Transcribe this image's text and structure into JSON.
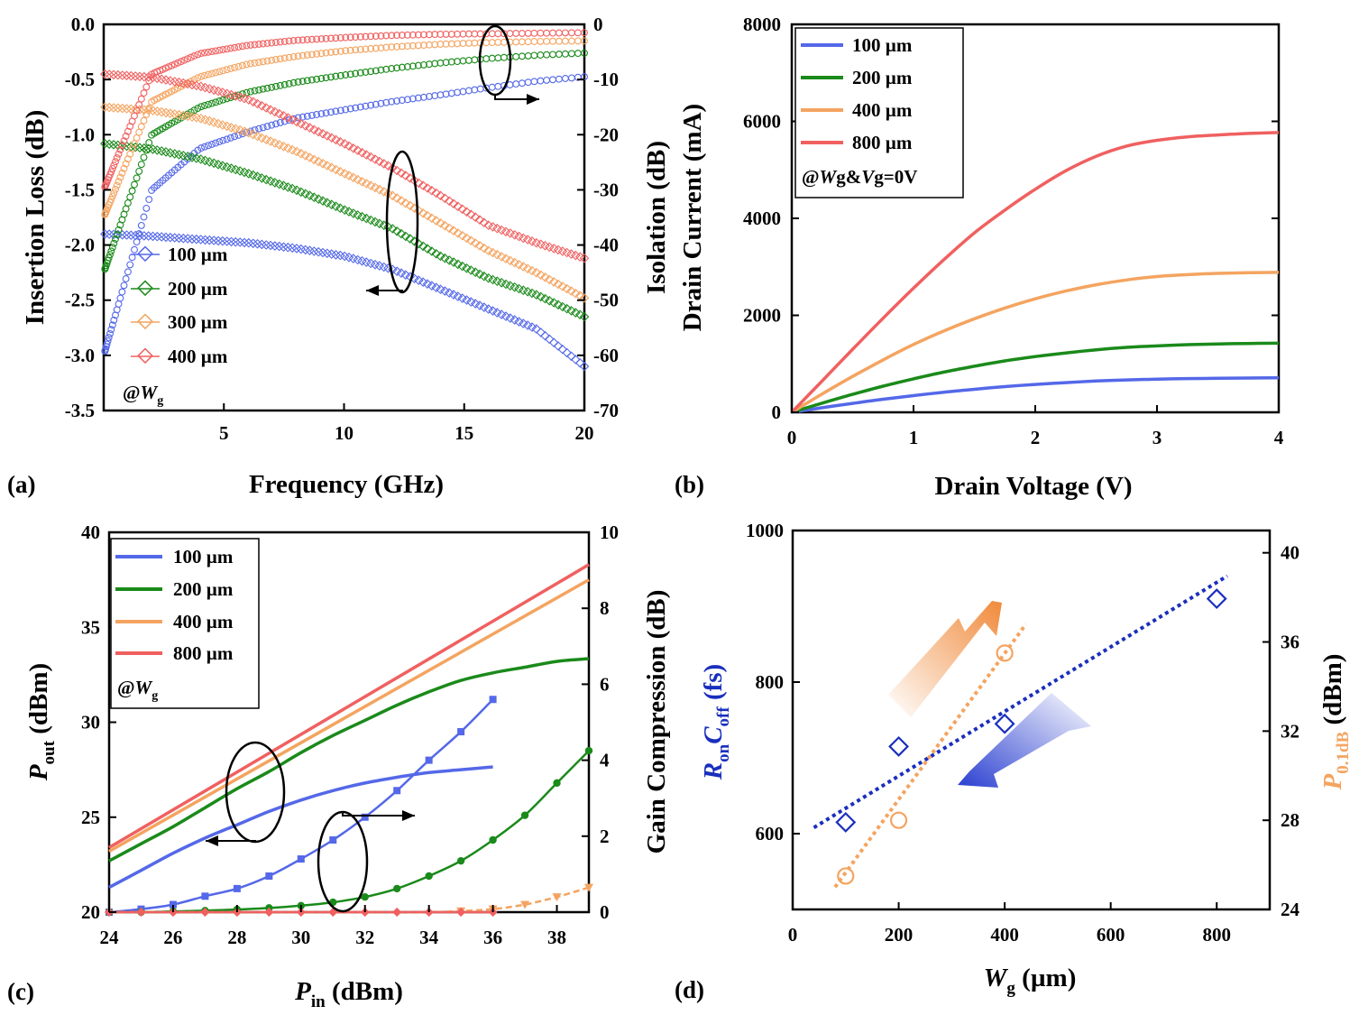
{
  "figure": {
    "panel_labels": [
      "(a)",
      "(b)",
      "(c)",
      "(d)"
    ]
  },
  "chart_data": [
    {
      "id": "a",
      "type": "scatter",
      "xlabel": "Frequency (GHz)",
      "ylabel_left": "Insertion Loss (dB)",
      "ylabel_right": "Isolation (dB)",
      "xlim": [
        0,
        20
      ],
      "ylim_left": [
        -3.5,
        0.0
      ],
      "ylim_right": [
        -70,
        0
      ],
      "xticks": [
        "5",
        "10",
        "15",
        "20"
      ],
      "yticks_left": [
        "0.0",
        "-0.5",
        "-1.0",
        "-1.5",
        "-2.0",
        "-2.5",
        "-3.0",
        "-3.5"
      ],
      "yticks_right": [
        "0",
        "-10",
        "-20",
        "-30",
        "-40",
        "-50",
        "-60",
        "-70"
      ],
      "annotation": {
        "prefix": "@",
        "var": "W",
        "sub": "g"
      },
      "legend": [
        "100 µm",
        "200 µm",
        "300 µm",
        "400 µm"
      ],
      "colors": [
        "#5468e8",
        "#1a8a1a",
        "#f4a460",
        "#f06060"
      ],
      "x": [
        0,
        2,
        4,
        6,
        8,
        10,
        12,
        14,
        16,
        18,
        20
      ],
      "series": [
        {
          "name": "100 µm",
          "insertion_loss": [
            -1.9,
            -1.92,
            -1.95,
            -1.98,
            -2.03,
            -2.1,
            -2.22,
            -2.4,
            -2.58,
            -2.76,
            -3.1
          ],
          "isolation": [
            -60,
            -30,
            -22.5,
            -19.5,
            -17,
            -15.5,
            -14,
            -12.8,
            -11.5,
            -10.3,
            -9.5
          ]
        },
        {
          "name": "200 µm",
          "insertion_loss": [
            -1.08,
            -1.13,
            -1.22,
            -1.35,
            -1.5,
            -1.68,
            -1.85,
            -2.1,
            -2.3,
            -2.45,
            -2.65
          ],
          "isolation": [
            -45,
            -20,
            -15,
            -12.3,
            -10.5,
            -9.2,
            -8,
            -7,
            -6.2,
            -5.6,
            -5.2
          ]
        },
        {
          "name": "300 µm",
          "insertion_loss": [
            -0.75,
            -0.78,
            -0.85,
            -0.98,
            -1.15,
            -1.35,
            -1.55,
            -1.8,
            -2.05,
            -2.25,
            -2.48
          ],
          "isolation": [
            -35,
            -14,
            -9.5,
            -7.2,
            -5.8,
            -4.8,
            -4.1,
            -3.6,
            -3.3,
            -3.1,
            -3.0
          ]
        },
        {
          "name": "400 µm",
          "insertion_loss": [
            -0.45,
            -0.48,
            -0.56,
            -0.68,
            -0.88,
            -1.08,
            -1.3,
            -1.55,
            -1.82,
            -1.98,
            -2.12
          ],
          "isolation": [
            -30,
            -9,
            -5.3,
            -3.8,
            -2.9,
            -2.4,
            -2.0,
            -1.8,
            -1.7,
            -1.6,
            -1.5
          ]
        }
      ]
    },
    {
      "id": "b",
      "type": "line",
      "xlabel": "Drain Voltage (V)",
      "ylabel": "Drain Current (mA)",
      "xlim": [
        0,
        4
      ],
      "ylim": [
        0,
        8000
      ],
      "xticks": [
        "0",
        "1",
        "2",
        "3",
        "4"
      ],
      "yticks": [
        "0",
        "2000",
        "4000",
        "6000",
        "8000"
      ],
      "legend": [
        "100 µm",
        "200 µm",
        "400 µm",
        "800 µm"
      ],
      "annotation": {
        "text1": "@",
        "var1": "W",
        "sub1": "g",
        "mid": "&",
        "var2": "V",
        "sub2": "g",
        "tail": "=0V"
      },
      "colors": [
        "#5468e8",
        "#1a8a1a",
        "#f4a460",
        "#f06060"
      ],
      "x": [
        0,
        0.25,
        0.5,
        0.75,
        1.0,
        1.25,
        1.5,
        1.75,
        2.0,
        2.25,
        2.5,
        2.75,
        3.0,
        3.25,
        3.5,
        3.75,
        4.0
      ],
      "series": [
        {
          "name": "100 µm",
          "values": [
            0,
            95,
            185,
            270,
            345,
            415,
            475,
            530,
            575,
            612,
            645,
            668,
            683,
            695,
            702,
            707,
            710
          ]
        },
        {
          "name": "200 µm",
          "values": [
            0,
            190,
            370,
            540,
            690,
            830,
            950,
            1060,
            1150,
            1225,
            1290,
            1340,
            1370,
            1395,
            1410,
            1420,
            1425
          ]
        },
        {
          "name": "400 µm",
          "values": [
            0,
            380,
            740,
            1080,
            1400,
            1680,
            1930,
            2150,
            2340,
            2500,
            2630,
            2730,
            2800,
            2840,
            2865,
            2878,
            2885
          ]
        },
        {
          "name": "800 µm",
          "values": [
            0,
            650,
            1300,
            1940,
            2560,
            3150,
            3700,
            4170,
            4600,
            4980,
            5280,
            5490,
            5610,
            5680,
            5720,
            5750,
            5770
          ]
        }
      ]
    },
    {
      "id": "c",
      "type": "line",
      "xlabel": {
        "var": "P",
        "sub": "in",
        "unit": " (dBm)"
      },
      "ylabel_left": {
        "var": "P",
        "sub": "out",
        "unit": " (dBm)"
      },
      "ylabel_right": "Gain Compression (dB)",
      "xlim": [
        24,
        39
      ],
      "ylim_left": [
        20,
        40
      ],
      "ylim_right": [
        0,
        10
      ],
      "xticks": [
        "24",
        "26",
        "28",
        "30",
        "32",
        "34",
        "36",
        "38"
      ],
      "yticks_left": [
        "20",
        "25",
        "30",
        "35",
        "40"
      ],
      "yticks_right": [
        "0",
        "2",
        "4",
        "6",
        "8",
        "10"
      ],
      "legend": [
        "100 µm",
        "200 µm",
        "400 µm",
        "800 µm"
      ],
      "annotation": {
        "prefix": "@",
        "var": "W",
        "sub": "g"
      },
      "colors": [
        "#5468e8",
        "#1a8a1a",
        "#f4a460",
        "#f06060"
      ],
      "pout": [
        {
          "name": "100 µm",
          "x": [
            24,
            25,
            26,
            27,
            28,
            29,
            30,
            31,
            32,
            33,
            34,
            35,
            36
          ],
          "values": [
            21.3,
            22.2,
            23.1,
            23.9,
            24.6,
            25.3,
            25.9,
            26.4,
            26.8,
            27.1,
            27.35,
            27.5,
            27.65
          ]
        },
        {
          "name": "200 µm",
          "x": [
            24,
            25,
            26,
            27,
            28,
            29,
            30,
            31,
            32,
            33,
            34,
            35,
            36,
            37,
            38,
            39
          ],
          "values": [
            22.7,
            23.6,
            24.5,
            25.5,
            26.5,
            27.4,
            28.4,
            29.3,
            30.1,
            30.9,
            31.6,
            32.2,
            32.6,
            32.9,
            33.2,
            33.35
          ]
        },
        {
          "name": "400 µm",
          "x": [
            24,
            39
          ],
          "values": [
            23.2,
            37.5
          ]
        },
        {
          "name": "800 µm",
          "x": [
            24,
            39
          ],
          "values": [
            23.4,
            38.3
          ]
        }
      ],
      "gain_compression": [
        {
          "name": "100 µm",
          "x": [
            24,
            25,
            26,
            27,
            28,
            29,
            30,
            31,
            32,
            33,
            34,
            35,
            36
          ],
          "values": [
            0.0,
            0.08,
            0.2,
            0.42,
            0.62,
            0.95,
            1.4,
            1.9,
            2.5,
            3.2,
            4.0,
            4.75,
            5.6
          ]
        },
        {
          "name": "200 µm",
          "x": [
            24,
            25,
            26,
            27,
            28,
            29,
            30,
            31,
            32,
            33,
            34,
            35,
            36,
            37,
            38,
            39
          ],
          "values": [
            0.0,
            0.0,
            0.02,
            0.04,
            0.07,
            0.11,
            0.17,
            0.26,
            0.4,
            0.62,
            0.95,
            1.35,
            1.9,
            2.55,
            3.4,
            4.25
          ]
        },
        {
          "name": "400 µm",
          "x": [
            24,
            25,
            26,
            27,
            28,
            29,
            30,
            31,
            32,
            33,
            34,
            35,
            36,
            37,
            38,
            39
          ],
          "values": [
            0,
            0,
            0,
            0,
            0,
            0,
            0,
            0,
            0,
            0,
            0,
            0.03,
            0.08,
            0.2,
            0.4,
            0.65
          ]
        },
        {
          "name": "800 µm",
          "x": [
            24,
            25,
            26,
            27,
            28,
            29,
            30,
            31,
            32,
            33,
            34,
            35,
            36
          ],
          "values": [
            0,
            0,
            0,
            0,
            0,
            0,
            0,
            0,
            0,
            0,
            0,
            0,
            0
          ]
        }
      ]
    },
    {
      "id": "d",
      "type": "scatter",
      "xlabel": {
        "var": "W",
        "sub": "g",
        "unit": " (µm)"
      },
      "ylabel_left": {
        "var1": "R",
        "sub1": "on",
        "var2": "C",
        "sub2": "off",
        "unit": " (fs)"
      },
      "ylabel_right": {
        "var": "P",
        "sub": "0.1dB",
        "unit": " (dBm)"
      },
      "xlim": [
        0,
        900
      ],
      "ylim_left": [
        500,
        1000
      ],
      "ylim_right": [
        24,
        41
      ],
      "xticks": [
        "0",
        "200",
        "400",
        "600",
        "800"
      ],
      "yticks_left": [
        "600",
        "800",
        "1000"
      ],
      "yticks_right": [
        "24",
        "28",
        "32",
        "36",
        "40"
      ],
      "colors": {
        "ron": "#1a2fbd",
        "p01": "#f4a460"
      },
      "ron_coff": {
        "x": [
          100,
          200,
          400,
          800
        ],
        "values": [
          615,
          715,
          745,
          910
        ],
        "fit": {
          "x": [
            40,
            820
          ],
          "values": [
            608,
            940
          ]
        }
      },
      "p01db": {
        "x": [
          100,
          200,
          400
        ],
        "values": [
          25.5,
          28.0,
          35.5
        ],
        "fit": {
          "x": [
            80,
            440
          ],
          "values": [
            25.0,
            36.8
          ]
        }
      }
    }
  ]
}
